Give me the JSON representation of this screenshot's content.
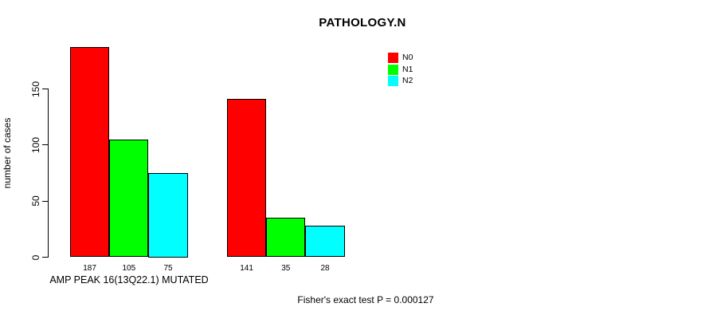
{
  "chart_data": {
    "type": "bar",
    "title": "PATHOLOGY.N",
    "ylabel": "number of cases",
    "xlabel": "AMP PEAK 16(13Q22.1) MUTATED",
    "annotation": "Fisher's exact test P = 0.000127",
    "ylim": [
      0,
      150
    ],
    "yticks": [
      0,
      50,
      100,
      150
    ],
    "grid": false,
    "legend_position": "top-right-inside",
    "categories": [
      "",
      ""
    ],
    "series": [
      {
        "name": "N0",
        "color": "#FF0000",
        "values": [
          187,
          141
        ]
      },
      {
        "name": "N1",
        "color": "#00FF00",
        "values": [
          105,
          35
        ]
      },
      {
        "name": "N2",
        "color": "#00FFFF",
        "values": [
          75,
          28
        ]
      }
    ],
    "bar_labels": [
      [
        187,
        105,
        75
      ],
      [
        141,
        35,
        28
      ]
    ]
  }
}
